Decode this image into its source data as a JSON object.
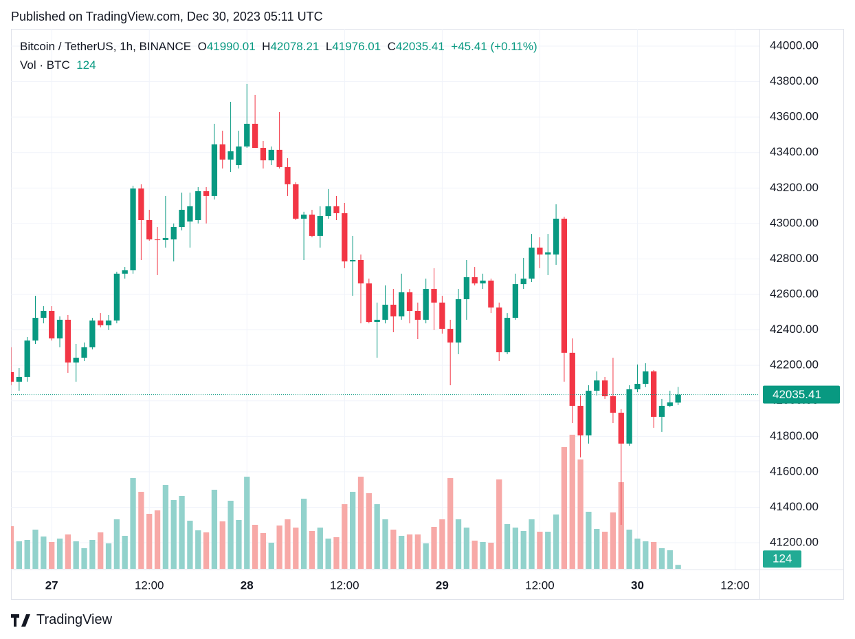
{
  "published": "Published on TradingView.com, Dec 30, 2023 05:11 UTC",
  "brand": "TradingView",
  "chart_data": {
    "type": "candlestick",
    "symbol": "Bitcoin / TetherUS, 1h, BINANCE",
    "legend_labels": {
      "open": "O",
      "high": "H",
      "low": "L",
      "close": "C"
    },
    "change": "+45.41 (+0.11%)",
    "volume_label": "Vol · BTC",
    "up_color": "#089981",
    "down_color": "#f23645",
    "volume_up_color": "#92d2cc",
    "volume_down_color": "#f7a9a7",
    "grid": true,
    "xlim": [
      0,
      92
    ],
    "xticks": [
      {
        "value": 5,
        "label": "27"
      },
      {
        "value": 17,
        "label": "12:00"
      },
      {
        "value": 29,
        "label": "28"
      },
      {
        "value": 41,
        "label": "12:00"
      },
      {
        "value": 53,
        "label": "29"
      },
      {
        "value": 65,
        "label": "12:00"
      },
      {
        "value": 77,
        "label": "30"
      },
      {
        "value": 89,
        "label": "12:00"
      }
    ],
    "ylim": [
      41049,
      44097
    ],
    "yticks": [
      {
        "value": 41200,
        "label": "41200.00"
      },
      {
        "value": 41400,
        "label": "41400.00"
      },
      {
        "value": 41600,
        "label": "41600.00"
      },
      {
        "value": 41800,
        "label": "41800.00"
      },
      {
        "value": 42000,
        "label": "42000.00"
      },
      {
        "value": 42200,
        "label": "42200.00"
      },
      {
        "value": 42400,
        "label": "42400.00"
      },
      {
        "value": 42600,
        "label": "42600.00"
      },
      {
        "value": 42800,
        "label": "42800.00"
      },
      {
        "value": 43000,
        "label": "43000.00"
      },
      {
        "value": 43200,
        "label": "43200.00"
      },
      {
        "value": 43400,
        "label": "43400.00"
      },
      {
        "value": 43600,
        "label": "43600.00"
      },
      {
        "value": 43800,
        "label": "43800.00"
      },
      {
        "value": 44000,
        "label": "44000.00"
      }
    ],
    "vlim": [
      0,
      8000
    ],
    "open": [
      42162,
      42108,
      42135,
      42340,
      42468,
      42507,
      42352,
      42457,
      42216,
      42243,
      42302,
      42453,
      42426,
      42453,
      42717,
      42736,
      43197,
      43019,
      42910,
      42907,
      42910,
      42980,
      43011,
      43019,
      43182,
      43155,
      43446,
      43360,
      43329,
      43434,
      43562,
      43426,
      43356,
      43415,
      43318,
      43221,
      43027,
      43050,
      42930,
      43042,
      43097,
      43058,
      42786,
      42794,
      42662,
      42445,
      42457,
      42542,
      42476,
      42612,
      42507,
      42457,
      42631,
      42554,
      42406,
      42329,
      42573,
      42697,
      42662,
      42678,
      42526,
      42274,
      42468,
      42658,
      42689,
      42864,
      42825,
      42825,
      43027,
      42271,
      41972,
      41805,
      42057,
      42115,
      42026,
      41933,
      41759,
      42065,
      42096,
      42166,
      41910,
      41972,
      41990.01
    ],
    "high": [
      42302,
      42185,
      42360,
      42592,
      42534,
      42534,
      42476,
      42484,
      42321,
      42329,
      42468,
      42495,
      42484,
      42728,
      42755,
      43213,
      43221,
      43077,
      42980,
      43155,
      43000,
      43174,
      43174,
      43205,
      43205,
      43562,
      43523,
      43686,
      43523,
      43787,
      43725,
      43465,
      43434,
      43628,
      43368,
      43232,
      43066,
      43077,
      43097,
      43194,
      43155,
      43116,
      42930,
      42825,
      42689,
      42554,
      42651,
      42631,
      42717,
      42631,
      42554,
      42689,
      42748,
      42592,
      42457,
      42631,
      42794,
      42755,
      42717,
      42689,
      42554,
      42495,
      42717,
      42806,
      42941,
      42922,
      42941,
      43108,
      43038,
      42352,
      42030,
      42088,
      42166,
      42135,
      42243,
      41953,
      42088,
      42205,
      42212,
      42174,
      42011,
      42057,
      42078.21
    ],
    "low": [
      42088,
      42057,
      42108,
      42321,
      42437,
      42340,
      42302,
      42158,
      42108,
      42224,
      42290,
      42414,
      42399,
      42437,
      42689,
      42717,
      42794,
      42903,
      42709,
      42864,
      42786,
      42961,
      42864,
      43000,
      43000,
      43135,
      43310,
      43290,
      43310,
      43426,
      43426,
      43310,
      43329,
      43310,
      43155,
      43019,
      42794,
      42922,
      42864,
      43027,
      43019,
      42748,
      42592,
      42437,
      42437,
      42243,
      42437,
      42387,
      42457,
      42437,
      42348,
      42437,
      42399,
      42379,
      42088,
      42263,
      42457,
      42651,
      42631,
      42495,
      42224,
      42263,
      42457,
      42631,
      42670,
      42748,
      42709,
      42767,
      42108,
      41875,
      41681,
      41759,
      42030,
      42011,
      41875,
      41301,
      41747,
      42049,
      42077,
      41848,
      41825,
      41964,
      41976.01
    ],
    "close": [
      42108,
      42135,
      42340,
      42468,
      42507,
      42352,
      42457,
      42216,
      42243,
      42302,
      42453,
      42426,
      42453,
      42717,
      42736,
      43197,
      43019,
      42910,
      42907,
      42918,
      42980,
      43077,
      43097,
      43182,
      43155,
      43446,
      43360,
      43407,
      43434,
      43562,
      43426,
      43356,
      43415,
      43318,
      43221,
      43027,
      43050,
      42930,
      43042,
      43097,
      43058,
      42786,
      42794,
      42662,
      42445,
      42457,
      42542,
      42476,
      42612,
      42507,
      42457,
      42631,
      42554,
      42406,
      42329,
      42573,
      42697,
      42662,
      42678,
      42526,
      42274,
      42468,
      42658,
      42689,
      42864,
      42825,
      42837,
      43027,
      42271,
      41972,
      41805,
      42057,
      42115,
      42026,
      41933,
      41759,
      42065,
      42096,
      42166,
      41910,
      41972,
      41991,
      42035.41
    ],
    "volume": [
      1333,
      860,
      903,
      1226,
      1011,
      839,
      946,
      1075,
      860,
      645,
      903,
      1140,
      796,
      1548,
      1032,
      2838,
      2408,
      1720,
      1828,
      2623,
      2150,
      2279,
      1505,
      1204,
      1140,
      2473,
      1484,
      2129,
      1527,
      2881,
      1376,
      1118,
      817,
      1355,
      1548,
      1290,
      2193,
      1183,
      1290,
      946,
      989,
      2021,
      2408,
      2881,
      2365,
      2021,
      1548,
      1226,
      1032,
      1075,
      1075,
      796,
      1312,
      1548,
      2838,
      1548,
      1290,
      882,
      839,
      817,
      2795,
      1398,
      1290,
      1183,
      1548,
      1161,
      1161,
      1699,
      3806,
      4193,
      3419,
      1785,
      1247,
      1161,
      1763,
      2709,
      1226,
      946,
      860,
      839,
      645,
      581,
      124
    ]
  }
}
